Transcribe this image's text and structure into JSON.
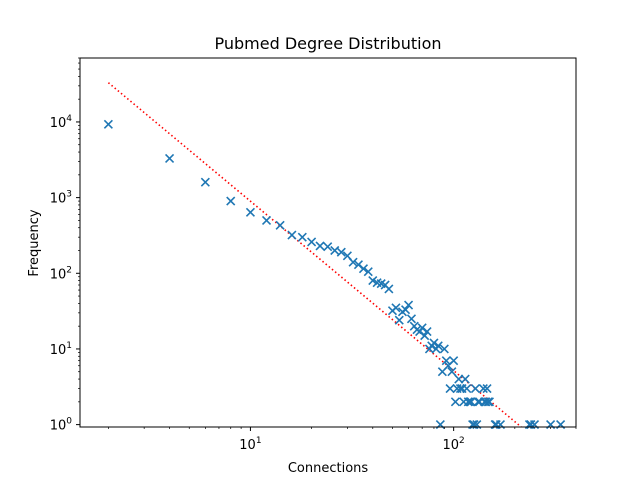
{
  "chart_data": {
    "type": "scatter",
    "title": "Pubmed Degree Distribution",
    "xlabel": "Connections",
    "ylabel": "Frequency",
    "xscale": "log",
    "yscale": "log",
    "xlim": [
      1.45,
      400
    ],
    "ylim": [
      0.93,
      70000
    ],
    "grid": false,
    "marker": "x",
    "colors": {
      "points": "#1f77b4",
      "fit": "#ff0000"
    },
    "x_ticks": [
      {
        "value": 10,
        "base": "10",
        "exp": "1"
      },
      {
        "value": 100,
        "base": "10",
        "exp": "2"
      }
    ],
    "y_ticks": [
      {
        "value": 1,
        "base": "10",
        "exp": "0"
      },
      {
        "value": 10,
        "base": "10",
        "exp": "1"
      },
      {
        "value": 100,
        "base": "10",
        "exp": "2"
      },
      {
        "value": 1000,
        "base": "10",
        "exp": "3"
      },
      {
        "value": 10000,
        "base": "10",
        "exp": "4"
      }
    ],
    "series": [
      {
        "points": [
          [
            2,
            9300
          ],
          [
            4,
            3300
          ],
          [
            6,
            1600
          ],
          [
            8,
            900
          ],
          [
            10,
            640
          ],
          [
            12,
            500
          ],
          [
            14,
            430
          ],
          [
            16,
            320
          ],
          [
            18,
            300
          ],
          [
            20,
            260
          ],
          [
            22,
            230
          ],
          [
            24,
            225
          ],
          [
            26,
            200
          ],
          [
            28,
            190
          ],
          [
            30,
            170
          ],
          [
            32,
            140
          ],
          [
            34,
            130
          ],
          [
            36,
            115
          ],
          [
            38,
            105
          ],
          [
            40,
            80
          ],
          [
            42,
            75
          ],
          [
            44,
            73
          ],
          [
            46,
            70
          ],
          [
            48,
            62
          ],
          [
            50,
            32
          ],
          [
            52,
            35
          ],
          [
            54,
            24
          ],
          [
            56,
            31
          ],
          [
            58,
            33
          ],
          [
            60,
            38
          ],
          [
            62,
            25
          ],
          [
            64,
            20
          ],
          [
            66,
            18
          ],
          [
            68,
            17
          ],
          [
            70,
            19
          ],
          [
            72,
            15
          ],
          [
            74,
            17
          ],
          [
            76,
            10
          ],
          [
            78,
            11
          ],
          [
            80,
            12
          ],
          [
            82,
            10
          ],
          [
            84,
            11
          ],
          [
            86,
            1
          ],
          [
            88,
            5
          ],
          [
            90,
            10
          ],
          [
            92,
            7
          ],
          [
            94,
            6
          ],
          [
            96,
            3
          ],
          [
            98,
            5
          ],
          [
            100,
            7
          ],
          [
            102,
            2
          ],
          [
            104,
            3
          ],
          [
            106,
            4
          ],
          [
            108,
            3
          ],
          [
            110,
            3
          ],
          [
            112,
            2
          ],
          [
            114,
            4
          ],
          [
            116,
            3
          ],
          [
            118,
            2
          ],
          [
            120,
            2
          ],
          [
            122,
            2
          ],
          [
            124,
            1
          ],
          [
            126,
            1
          ],
          [
            128,
            3
          ],
          [
            130,
            1
          ],
          [
            132,
            2
          ],
          [
            134,
            2
          ],
          [
            140,
            3
          ],
          [
            142,
            2
          ],
          [
            144,
            2
          ],
          [
            146,
            3
          ],
          [
            148,
            2
          ],
          [
            150,
            2
          ],
          [
            160,
            1
          ],
          [
            162,
            1
          ],
          [
            170,
            1
          ],
          [
            236,
            1
          ],
          [
            240,
            1
          ],
          [
            250,
            1
          ],
          [
            300,
            1
          ],
          [
            336,
            1
          ]
        ]
      },
      {
        "line": "dotted",
        "points": [
          [
            2,
            33000
          ],
          [
            230,
            0.8
          ]
        ]
      }
    ]
  }
}
